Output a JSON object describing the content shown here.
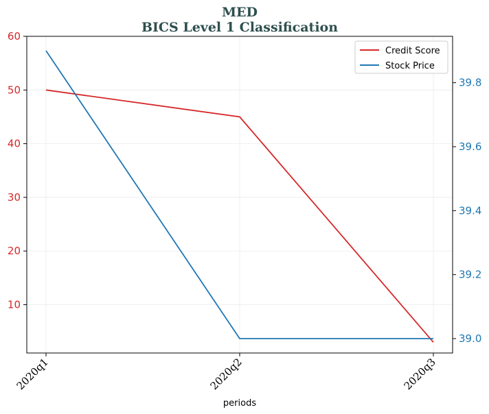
{
  "chart_data": {
    "type": "line",
    "title": "MED",
    "subtitle": "BICS Level 1 Classification",
    "xlabel": "periods",
    "categories": [
      "2020q1",
      "2020q2",
      "2020q3"
    ],
    "series": [
      {
        "name": "Credit Score",
        "axis": "left",
        "color": "#d62728",
        "values": [
          50,
          45,
          3
        ]
      },
      {
        "name": "Stock Price",
        "axis": "right",
        "color": "#1f77b4",
        "values": [
          39.9,
          39.0,
          39.0
        ]
      }
    ],
    "y_left": {
      "ticks": [
        10,
        20,
        30,
        40,
        50,
        60
      ],
      "range": [
        1,
        60
      ],
      "color": "#d62728"
    },
    "y_right": {
      "ticks": [
        39.0,
        39.2,
        39.4,
        39.6,
        39.8
      ],
      "range": [
        38.955,
        39.945
      ],
      "color": "#1f77b4"
    },
    "grid": true,
    "legend": "top-right"
  }
}
